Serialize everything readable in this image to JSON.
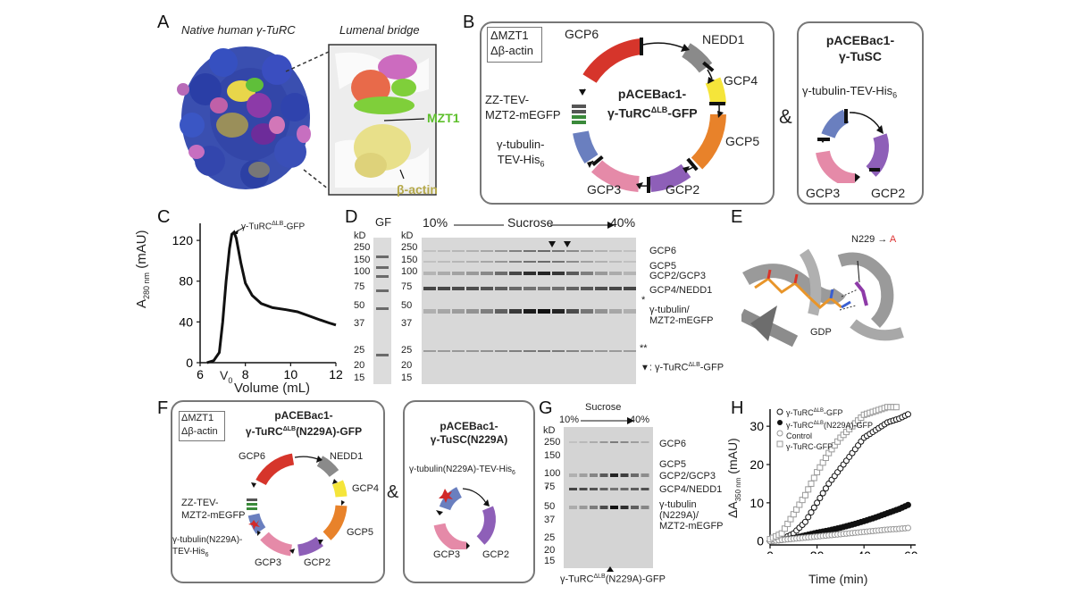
{
  "panelA": {
    "letter": "A",
    "left_title": "Native human γ-TuRC",
    "right_title": "Lumenal bridge",
    "label_mzt1": "MZT1",
    "label_actin": "β-actin"
  },
  "panelB": {
    "letter": "B",
    "deletion_line1": "ΔMZT1",
    "deletion_line2": "Δβ-actin",
    "plasmid_line1": "pACEBac1-",
    "plasmid_line2": "γ-TuRC",
    "plasmid_sup": "ΔLB",
    "plasmid_suffix": "-GFP",
    "genes": {
      "gcp6": "GCP6",
      "nedd1": "NEDD1",
      "gcp4": "GCP4",
      "gcp5": "GCP5",
      "gcp2": "GCP2",
      "gcp3": "GCP3",
      "tub_line1": "γ-tubulin-",
      "tub_line2": "TEV-His",
      "tub_sub": "6",
      "zz_line1": "ZZ-TEV-",
      "zz_line2": "MZT2-mEGFP"
    },
    "ampersand": "&",
    "tusc_title1": "pACEBac1-",
    "tusc_title2": "γ-TuSC",
    "tusc_tub": "γ-tubulin-TEV-His",
    "tusc_sub": "6",
    "tusc_gcp3": "GCP3",
    "tusc_gcp2": "GCP2"
  },
  "panelC": {
    "letter": "C",
    "ylabel_main": "A",
    "ylabel_sub": "280 nm",
    "ylabel_unit": " (mAU)",
    "xlabel": "Volume (mL)",
    "peak_label": "γ-TuRC",
    "peak_sup": "ΔLB",
    "peak_suffix": "-GFP",
    "xticks": [
      "6",
      "8",
      "10",
      "12"
    ],
    "yticks": [
      "0",
      "40",
      "80",
      "120"
    ],
    "v0": "V",
    "v0_sub": "0"
  },
  "panelD": {
    "letter": "D",
    "gf": "GF",
    "kd": "kD",
    "kd2": "kD",
    "pct_low": "10%",
    "sucrose": "Sucrose",
    "pct_high": "40%",
    "markers": [
      "250",
      "150",
      "100",
      "75",
      "50",
      "37",
      "25",
      "20",
      "15"
    ],
    "bands": [
      "GCP6",
      "GCP5",
      "GCP2/GCP3",
      "GCP4/NEDD1",
      "γ-tubulin/",
      "MZT2-mEGFP"
    ],
    "star1": "*",
    "star2": "**",
    "legend": ": γ-TuRC",
    "legend_sup": "ΔLB",
    "legend_suffix": "-GFP"
  },
  "panelE": {
    "letter": "E",
    "mutation": "N229",
    "arrow": " → ",
    "mut_to": "A",
    "gdp": "GDP"
  },
  "panelF": {
    "letter": "F",
    "deletion_line1": "ΔMZT1",
    "deletion_line2": "Δβ-actin",
    "title1": "pACEBac1-",
    "title2": "γ-TuRC",
    "title_sup": "ΔLB",
    "title_suffix": "(N229A)-GFP",
    "genes": {
      "gcp6": "GCP6",
      "nedd1": "NEDD1",
      "gcp4": "GCP4",
      "gcp5": "GCP5",
      "gcp2": "GCP2",
      "gcp3": "GCP3",
      "zz1": "ZZ-TEV-",
      "zz2": "MZT2-mEGFP",
      "tub1": "γ-tubulin(N229A)-",
      "tub2": "TEV-His",
      "tub_sub": "6"
    },
    "ampersand": "&",
    "tusc_title1": "pACEBac1-",
    "tusc_title2": "γ-TuSC(N229A)",
    "tusc_tub": "γ-tubulin(N229A)-TEV-His",
    "tusc_sub": "6",
    "tusc_gcp3": "GCP3",
    "tusc_gcp2": "GCP2"
  },
  "panelG": {
    "letter": "G",
    "sucrose": "Sucrose",
    "pct_low": "10%",
    "pct_high": "40%",
    "kd": "kD",
    "markers": [
      "250",
      "150",
      "100",
      "75",
      "50",
      "37",
      "25",
      "20",
      "15"
    ],
    "bands": [
      "GCP6",
      "GCP5",
      "GCP2/GCP3",
      "GCP4/NEDD1",
      "γ-tubulin",
      "(N229A)/",
      "MZT2-mEGFP"
    ],
    "star": "*",
    "bottom": "γ-TuRC",
    "bottom_sup": "ΔLB",
    "bottom_suffix": "(N229A)-GFP"
  },
  "panelH": {
    "letter": "H",
    "ylabel_main": "ΔA",
    "ylabel_sub": "350 nm",
    "ylabel_unit": " (mAU)",
    "xlabel": "Time (min)",
    "xticks": [
      "0",
      "20",
      "40",
      "60"
    ],
    "yticks": [
      "0",
      "10",
      "20",
      "30"
    ],
    "legend": [
      {
        "main": "γ-TuRC",
        "sup": "ΔLB",
        "suffix": "-GFP"
      },
      {
        "main": "γ-TuRC",
        "sup": "ΔLB",
        "suffix": "(N229A)-GFP"
      },
      {
        "main": "Control",
        "sup": "",
        "suffix": ""
      },
      {
        "main": "γ-TuRC-GFP",
        "sup": "",
        "suffix": ""
      }
    ]
  },
  "chart_data": [
    {
      "type": "line",
      "panel": "C",
      "xlabel": "Volume (mL)",
      "ylabel": "A280 nm (mAU)",
      "xlim": [
        6,
        12
      ],
      "ylim": [
        0,
        135
      ],
      "series": [
        {
          "x": [
            6.3,
            6.6,
            6.85,
            7.0,
            7.15,
            7.3,
            7.4,
            7.5,
            7.6,
            7.8,
            8.0,
            8.3,
            8.7,
            9.2,
            9.8,
            10.3,
            10.8,
            11.3,
            11.7,
            12.0
          ],
          "values": [
            0,
            2,
            10,
            40,
            80,
            112,
            126,
            128,
            122,
            98,
            78,
            66,
            58,
            54,
            52,
            50,
            46,
            42,
            39,
            37
          ]
        }
      ]
    },
    {
      "type": "scatter",
      "panel": "H",
      "xlabel": "Time (min)",
      "ylabel": "ΔA350 nm (mAU)",
      "xlim": [
        0,
        62
      ],
      "ylim": [
        -1,
        34
      ],
      "series": [
        {
          "name": "γ-TuRCΔLB-GFP",
          "x": [
            0,
            5,
            10,
            15,
            20,
            25,
            30,
            35,
            40,
            45,
            50,
            55,
            60
          ],
          "values": [
            0,
            0.5,
            2,
            5,
            10,
            15,
            19,
            23,
            27,
            29,
            31,
            32,
            33.5
          ]
        },
        {
          "name": "γ-TuRCΔLB(N229A)-GFP",
          "x": [
            0,
            5,
            10,
            15,
            20,
            25,
            30,
            35,
            40,
            45,
            50,
            55,
            60
          ],
          "values": [
            0,
            0.3,
            0.8,
            1.5,
            2.2,
            2.8,
            3.5,
            4.3,
            5.2,
            6.2,
            7.3,
            8.4,
            9.8
          ]
        },
        {
          "name": "Control",
          "x": [
            0,
            5,
            10,
            15,
            20,
            25,
            30,
            35,
            40,
            45,
            50,
            55,
            60
          ],
          "values": [
            0,
            0.3,
            0.6,
            0.9,
            1.2,
            1.5,
            1.8,
            2.1,
            2.4,
            2.7,
            3.0,
            3.2,
            3.5
          ]
        },
        {
          "name": "γ-TuRC-GFP",
          "x": [
            0,
            5,
            10,
            15,
            20,
            25,
            30,
            35,
            40,
            45,
            50,
            55
          ],
          "values": [
            0.5,
            2,
            7,
            12,
            18,
            23,
            27,
            30,
            33,
            34,
            35,
            35
          ]
        }
      ]
    }
  ]
}
